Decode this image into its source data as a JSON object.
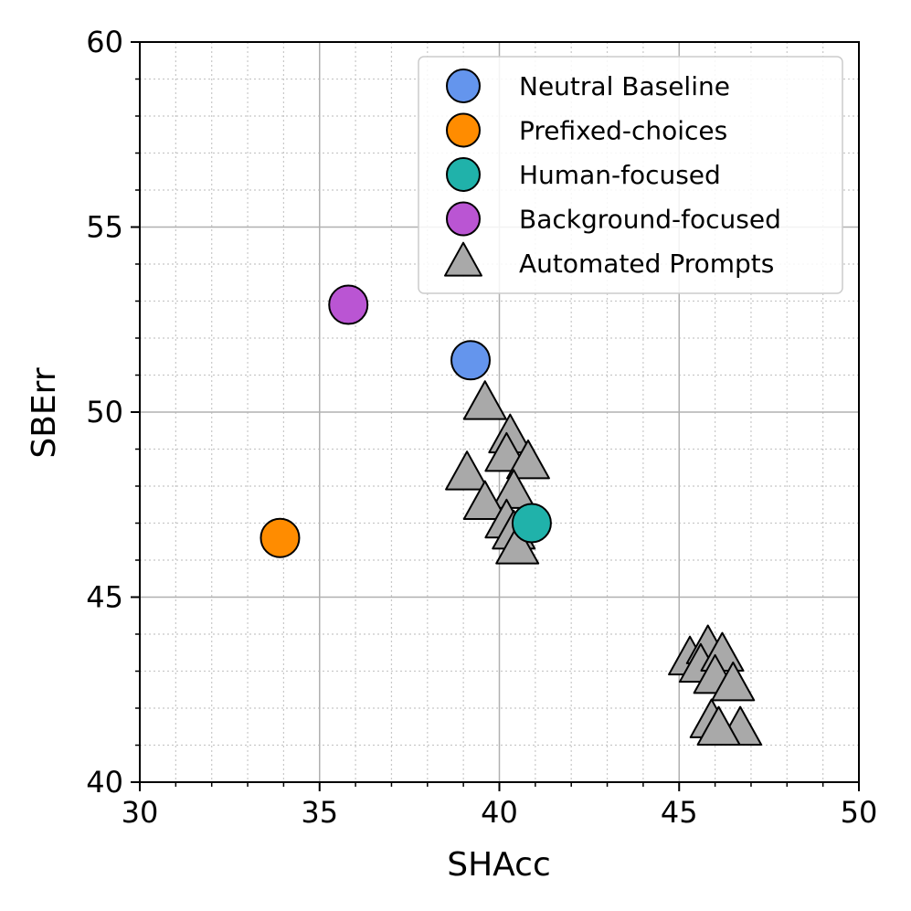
{
  "chart_data": {
    "type": "scatter",
    "title": "",
    "xlabel": "SHAcc",
    "ylabel": "SBErr",
    "xlim": [
      30,
      50
    ],
    "ylim": [
      40,
      60
    ],
    "xticks": [
      30,
      35,
      40,
      45,
      50
    ],
    "yticks": [
      40,
      45,
      50,
      55,
      60
    ],
    "grid": "major solid, minor dotted",
    "legend_position": "top-right",
    "series": [
      {
        "name": "Neutral Baseline",
        "marker": "circle",
        "color": "#6495ED",
        "points": [
          [
            39.2,
            51.4
          ]
        ]
      },
      {
        "name": "Prefixed-choices",
        "marker": "circle",
        "color": "#FF8C00",
        "points": [
          [
            33.9,
            46.6
          ]
        ]
      },
      {
        "name": "Human-focused",
        "marker": "circle",
        "color": "#20B2AA",
        "points": [
          [
            40.9,
            47.0
          ]
        ]
      },
      {
        "name": "Background-focused",
        "marker": "circle",
        "color": "#BA55D3",
        "points": [
          [
            35.8,
            52.9
          ]
        ]
      },
      {
        "name": "Automated Prompts",
        "marker": "triangle",
        "color": "#A9A9A9",
        "points": [
          [
            39.6,
            50.2
          ],
          [
            40.3,
            49.3
          ],
          [
            40.2,
            48.8
          ],
          [
            40.8,
            48.6
          ],
          [
            39.1,
            48.3
          ],
          [
            40.4,
            47.8
          ],
          [
            39.6,
            47.5
          ],
          [
            40.2,
            47.0
          ],
          [
            40.4,
            46.7
          ],
          [
            40.5,
            46.3
          ],
          [
            45.3,
            43.3
          ],
          [
            45.8,
            43.6
          ],
          [
            45.6,
            43.1
          ],
          [
            46.2,
            43.4
          ],
          [
            46.0,
            42.8
          ],
          [
            46.5,
            42.6
          ],
          [
            45.9,
            41.6
          ],
          [
            46.7,
            41.4
          ],
          [
            46.1,
            41.4
          ]
        ]
      }
    ]
  }
}
